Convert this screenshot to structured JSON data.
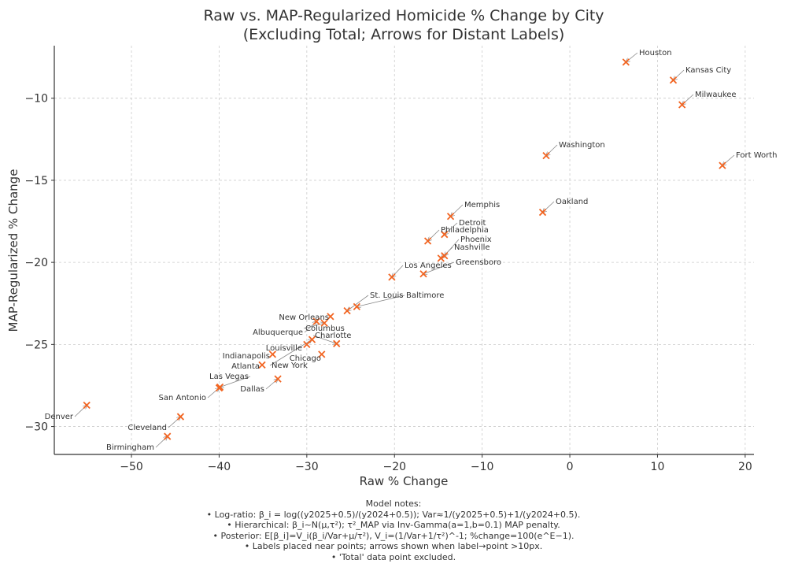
{
  "chart_data": {
    "type": "scatter",
    "title": [
      "Raw vs. MAP-Regularized Homicide % Change by City",
      "(Excluding Total; Arrows for Distant Labels)"
    ],
    "xlabel": "Raw % Change",
    "ylabel": "MAP-Regularized % Change",
    "xlim": [
      -58.8,
      21.0
    ],
    "ylim": [
      -31.7,
      -6.8
    ],
    "xticks": [
      -50,
      -40,
      -30,
      -20,
      -10,
      0,
      10,
      20
    ],
    "yticks": [
      -10,
      -15,
      -20,
      -25,
      -30
    ],
    "grid": true,
    "marker": "x",
    "marker_color": "#f26522",
    "points": [
      {
        "name": "Houston",
        "x": 6.4,
        "y": -7.8
      },
      {
        "name": "Kansas City",
        "x": 11.8,
        "y": -8.9
      },
      {
        "name": "Milwaukee",
        "x": 12.8,
        "y": -10.4
      },
      {
        "name": "Washington",
        "x": -2.7,
        "y": -13.5
      },
      {
        "name": "Fort Worth",
        "x": 17.4,
        "y": -14.1
      },
      {
        "name": "Oakland",
        "x": -3.1,
        "y": -16.95
      },
      {
        "name": "Memphis",
        "x": -13.6,
        "y": -17.2
      },
      {
        "name": "Detroit",
        "x": -14.3,
        "y": -18.3
      },
      {
        "name": "Philadelphia",
        "x": -16.2,
        "y": -18.7
      },
      {
        "name": "Phoenix",
        "x": -14.3,
        "y": -19.6
      },
      {
        "name": "Nashville",
        "x": -14.7,
        "y": -19.75
      },
      {
        "name": "Greensboro",
        "x": -16.7,
        "y": -20.7
      },
      {
        "name": "Los Angeles",
        "x": -20.3,
        "y": -20.9
      },
      {
        "name": "Baltimore",
        "x": -24.3,
        "y": -22.7
      },
      {
        "name": "St. Louis",
        "x": -25.4,
        "y": -22.95
      },
      {
        "name": "New Orleans",
        "x": -27.3,
        "y": -23.3
      },
      {
        "name": "Columbus",
        "x": -28.0,
        "y": -23.7
      },
      {
        "name": "Albuquerque",
        "x": -28.9,
        "y": -23.6
      },
      {
        "name": "Charlotte",
        "x": -26.6,
        "y": -24.95
      },
      {
        "name": "New York",
        "x": -29.4,
        "y": -24.7
      },
      {
        "name": "Louisville",
        "x": -30.0,
        "y": -25.0
      },
      {
        "name": "Chicago",
        "x": -28.3,
        "y": -25.6
      },
      {
        "name": "Indianapolis",
        "x": -33.9,
        "y": -25.6
      },
      {
        "name": "Atlanta",
        "x": -35.1,
        "y": -26.25
      },
      {
        "name": "Dallas",
        "x": -33.3,
        "y": -27.1
      },
      {
        "name": "Las Vegas",
        "x": -39.9,
        "y": -27.6
      },
      {
        "name": "San Antonio",
        "x": -40.0,
        "y": -27.65
      },
      {
        "name": "Denver",
        "x": -55.1,
        "y": -28.7
      },
      {
        "name": "Cleveland",
        "x": -44.4,
        "y": -29.4
      },
      {
        "name": "Birmingham",
        "x": -45.9,
        "y": -30.6
      }
    ]
  },
  "notes": {
    "heading": "Model notes:",
    "lines": [
      "• Log-ratio: β_i = log((y2025+0.5)/(y2024+0.5)); Var≈1/(y2025+0.5)+1/(y2024+0.5).",
      "• Hierarchical: β_i~N(μ,τ²); τ²_MAP via Inv-Gamma(a=1,b=0.1) MAP penalty.",
      "• Posterior: E[β_i]=V_i(β_i/Var+μ/τ²), V_i=(1/Var+1/τ²)^-1; %change=100(e^E−1).",
      "• Labels placed near points; arrows shown when label→point >10px.",
      "• 'Total' data point excluded."
    ]
  }
}
